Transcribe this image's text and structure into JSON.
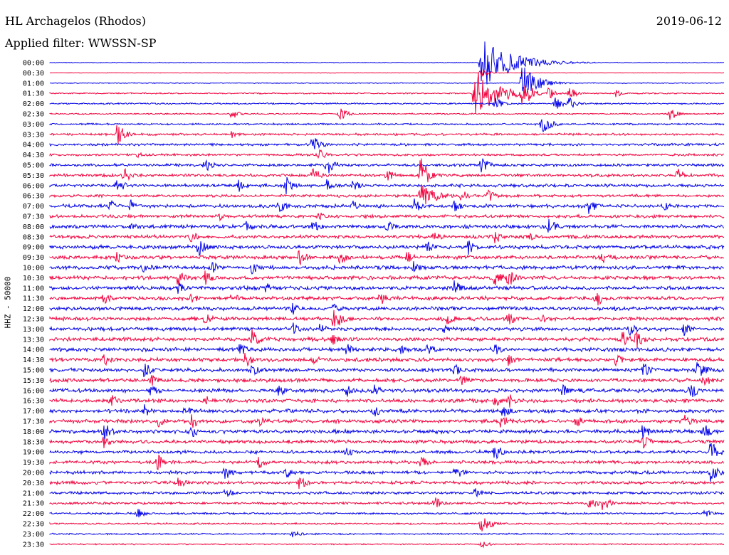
{
  "header": {
    "station": "HL Archagelos (Rhodos)",
    "date": "2019-06-12",
    "filter": "Applied filter: WWSSN-SP"
  },
  "colors": {
    "trace_a": "#0000e6",
    "trace_b": "#f0003c",
    "background": "#ffffff"
  },
  "chart_data": {
    "type": "line",
    "title": "HL Archagelos (Rhodos)",
    "subtitle": "Applied filter: WWSSN-SP",
    "ylabel": "HHZ - 50000",
    "xlabel": "",
    "grid": false,
    "legend": "none",
    "row_labels": [
      "00:00",
      "00:30",
      "01:00",
      "01:30",
      "02:00",
      "02:30",
      "03:00",
      "03:30",
      "04:00",
      "04:30",
      "05:00",
      "05:30",
      "06:00",
      "06:30",
      "07:00",
      "07:30",
      "08:00",
      "08:30",
      "09:00",
      "09:30",
      "10:00",
      "10:30",
      "11:00",
      "11:30",
      "12:00",
      "12:30",
      "13:00",
      "13:30",
      "14:00",
      "14:30",
      "15:00",
      "15:30",
      "16:00",
      "16:30",
      "17:00",
      "17:30",
      "18:00",
      "18:30",
      "19:00",
      "19:30",
      "20:00",
      "20:30",
      "21:00",
      "21:30",
      "22:00",
      "22:30",
      "23:00",
      "23:30"
    ],
    "noise_level": [
      0.6,
      0.4,
      0.7,
      1.1,
      1.3,
      1.2,
      1.5,
      1.8,
      2.0,
      1.8,
      2.2,
      2.4,
      2.6,
      2.2,
      2.8,
      2.6,
      3.0,
      2.8,
      3.0,
      3.0,
      3.0,
      3.0,
      3.1,
      3.0,
      3.0,
      3.0,
      3.1,
      3.0,
      3.1,
      3.0,
      3.0,
      3.0,
      3.1,
      3.0,
      3.0,
      3.0,
      3.0,
      2.8,
      2.7,
      2.6,
      2.6,
      2.6,
      2.2,
      2.0,
      1.6,
      1.4,
      1.3,
      1.0
    ],
    "events": [
      [
        [
          64,
          38,
          40
        ],
        [
          70,
          4,
          12
        ]
      ],
      [
        [
          64,
          6,
          12
        ]
      ],
      [
        [
          70,
          28,
          20
        ],
        [
          71,
          14,
          14
        ],
        [
          72,
          10,
          12
        ]
      ],
      [
        [
          63,
          40,
          30
        ],
        [
          64,
          12,
          12
        ],
        [
          70,
          16,
          10
        ],
        [
          71,
          14,
          10
        ],
        [
          74,
          10,
          10
        ],
        [
          77,
          10,
          10
        ],
        [
          84,
          6,
          8
        ]
      ],
      [
        [
          66,
          10,
          10
        ],
        [
          75,
          10,
          10
        ],
        [
          77,
          10,
          10
        ]
      ],
      [
        [
          27,
          10,
          8
        ],
        [
          43,
          12,
          10
        ],
        [
          92,
          12,
          10
        ]
      ],
      [
        [
          73,
          14,
          12
        ]
      ],
      [
        [
          10,
          18,
          10
        ],
        [
          27,
          6,
          8
        ]
      ],
      [
        [
          39,
          16,
          10
        ]
      ],
      [
        [
          13,
          6,
          8
        ],
        [
          40,
          8,
          10
        ]
      ],
      [
        [
          23,
          12,
          10
        ],
        [
          41,
          18,
          10
        ],
        [
          64,
          12,
          10
        ]
      ],
      [
        [
          11,
          12,
          10
        ],
        [
          39,
          14,
          10
        ],
        [
          50,
          10,
          10
        ],
        [
          55,
          30,
          10
        ],
        [
          93,
          12,
          10
        ]
      ],
      [
        [
          10,
          14,
          10
        ],
        [
          28,
          10,
          10
        ],
        [
          35,
          14,
          12
        ],
        [
          41,
          10,
          10
        ],
        [
          45,
          10,
          10
        ]
      ],
      [
        [
          55,
          18,
          22
        ],
        [
          61,
          10,
          10
        ],
        [
          65,
          10,
          10
        ]
      ],
      [
        [
          9,
          10,
          8
        ],
        [
          12,
          10,
          8
        ],
        [
          34,
          12,
          10
        ],
        [
          45,
          10,
          10
        ],
        [
          54,
          12,
          10
        ],
        [
          60,
          10,
          10
        ],
        [
          80,
          14,
          10
        ],
        [
          91,
          8,
          10
        ]
      ],
      [
        [
          25,
          8,
          10
        ],
        [
          40,
          8,
          10
        ]
      ],
      [
        [
          12,
          8,
          10
        ],
        [
          29,
          10,
          10
        ],
        [
          39,
          12,
          10
        ],
        [
          50,
          10,
          10
        ],
        [
          74,
          14,
          10
        ]
      ],
      [
        [
          21,
          10,
          10
        ],
        [
          57,
          10,
          10
        ],
        [
          66,
          10,
          10
        ],
        [
          71,
          8,
          10
        ]
      ],
      [
        [
          22,
          14,
          10
        ],
        [
          56,
          12,
          10
        ],
        [
          62,
          12,
          10
        ]
      ],
      [
        [
          10,
          10,
          10
        ],
        [
          37,
          14,
          10
        ],
        [
          43,
          12,
          10
        ],
        [
          53,
          10,
          10
        ],
        [
          82,
          10,
          10
        ]
      ],
      [
        [
          14,
          10,
          10
        ],
        [
          24,
          10,
          10
        ],
        [
          30,
          10,
          10
        ],
        [
          54,
          10,
          10
        ]
      ],
      [
        [
          19,
          12,
          10
        ],
        [
          23,
          12,
          10
        ],
        [
          66,
          14,
          10
        ],
        [
          68,
          14,
          10
        ]
      ],
      [
        [
          19,
          10,
          10
        ],
        [
          32,
          10,
          10
        ],
        [
          60,
          12,
          10
        ]
      ],
      [
        [
          8,
          10,
          10
        ],
        [
          21,
          8,
          10
        ],
        [
          27,
          10,
          10
        ],
        [
          49,
          12,
          10
        ],
        [
          81,
          14,
          10
        ]
      ],
      [
        [
          36,
          10,
          10
        ],
        [
          42,
          10,
          10
        ]
      ],
      [
        [
          23,
          12,
          10
        ],
        [
          42,
          20,
          12
        ],
        [
          59,
          10,
          10
        ],
        [
          68,
          12,
          10
        ],
        [
          73,
          10,
          10
        ]
      ],
      [
        [
          36,
          10,
          10
        ],
        [
          40,
          10,
          10
        ],
        [
          58,
          10,
          10
        ],
        [
          86,
          10,
          10
        ],
        [
          94,
          12,
          10
        ]
      ],
      [
        [
          30,
          16,
          10
        ],
        [
          42,
          10,
          10
        ],
        [
          85,
          14,
          10
        ],
        [
          87,
          14,
          10
        ]
      ],
      [
        [
          28,
          12,
          10
        ],
        [
          44,
          10,
          10
        ],
        [
          52,
          10,
          10
        ],
        [
          56,
          10,
          10
        ],
        [
          66,
          10,
          10
        ]
      ],
      [
        [
          8,
          10,
          10
        ],
        [
          29,
          12,
          10
        ],
        [
          39,
          10,
          10
        ],
        [
          68,
          10,
          10
        ],
        [
          84,
          10,
          10
        ]
      ],
      [
        [
          14,
          12,
          10
        ],
        [
          30,
          10,
          10
        ],
        [
          60,
          10,
          10
        ],
        [
          88,
          12,
          10
        ],
        [
          96,
          14,
          12
        ]
      ],
      [
        [
          15,
          10,
          10
        ],
        [
          61,
          10,
          10
        ],
        [
          97,
          12,
          10
        ]
      ],
      [
        [
          15,
          12,
          10
        ],
        [
          34,
          10,
          10
        ],
        [
          44,
          10,
          10
        ],
        [
          48,
          10,
          10
        ],
        [
          76,
          10,
          10
        ],
        [
          95,
          14,
          10
        ]
      ],
      [
        [
          9,
          12,
          10
        ],
        [
          23,
          10,
          10
        ],
        [
          66,
          12,
          10
        ],
        [
          68,
          12,
          10
        ]
      ],
      [
        [
          14,
          12,
          10
        ],
        [
          20,
          10,
          10
        ],
        [
          48,
          10,
          10
        ],
        [
          67,
          14,
          10
        ]
      ],
      [
        [
          16,
          10,
          10
        ],
        [
          21,
          12,
          10
        ],
        [
          31,
          10,
          10
        ],
        [
          67,
          14,
          10
        ],
        [
          78,
          10,
          10
        ],
        [
          94,
          12,
          10
        ]
      ],
      [
        [
          8,
          16,
          10
        ],
        [
          21,
          10,
          10
        ],
        [
          88,
          14,
          10
        ],
        [
          97,
          12,
          10
        ]
      ],
      [
        [
          8,
          10,
          10
        ],
        [
          88,
          12,
          10
        ]
      ],
      [
        [
          44,
          10,
          10
        ],
        [
          66,
          14,
          10
        ],
        [
          98,
          16,
          12
        ]
      ],
      [
        [
          16,
          12,
          10
        ],
        [
          31,
          10,
          10
        ],
        [
          55,
          10,
          10
        ]
      ],
      [
        [
          26,
          12,
          10
        ],
        [
          35,
          10,
          10
        ],
        [
          60,
          14,
          10
        ],
        [
          98,
          14,
          12
        ]
      ],
      [
        [
          19,
          10,
          10
        ],
        [
          37,
          12,
          10
        ]
      ],
      [
        [
          26,
          8,
          10
        ],
        [
          63,
          8,
          10
        ]
      ],
      [
        [
          57,
          10,
          10
        ],
        [
          80,
          12,
          10
        ],
        [
          82,
          12,
          10
        ]
      ],
      [
        [
          13,
          8,
          10
        ],
        [
          97,
          8,
          10
        ]
      ],
      [
        [
          64,
          16,
          12
        ]
      ],
      [
        [
          36,
          8,
          10
        ]
      ],
      [
        [
          64,
          6,
          10
        ]
      ]
    ]
  }
}
